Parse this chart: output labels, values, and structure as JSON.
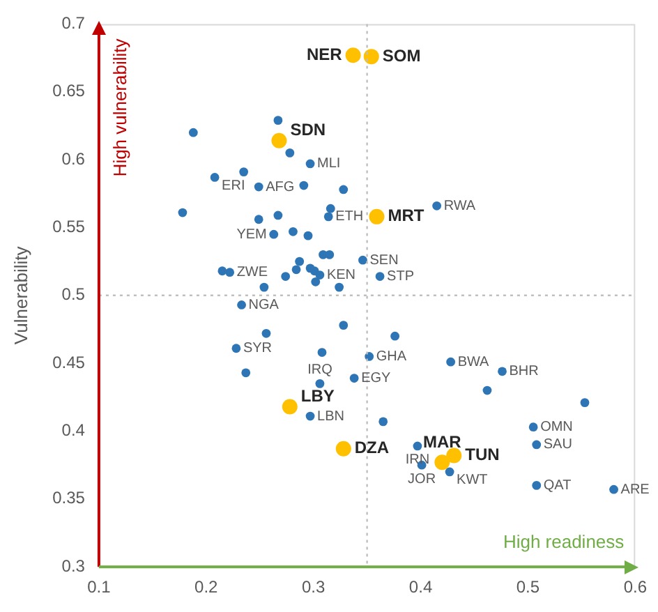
{
  "chart_data": {
    "type": "scatter",
    "ylabel": "Vulnerability",
    "xlim": [
      0.1,
      0.6
    ],
    "xticks": [
      0.1,
      0.2,
      0.3,
      0.4,
      0.5,
      0.6
    ],
    "ylim": [
      0.3,
      0.7
    ],
    "yticks": [
      0.3,
      0.35,
      0.4,
      0.45,
      0.5,
      0.55,
      0.6,
      0.65,
      0.7
    ],
    "grid": false,
    "legend": false,
    "marker": "circle",
    "ref_lines": [
      {
        "axis": "x",
        "value": 0.35,
        "color": "#bfbfbf",
        "line_style": "dotted"
      },
      {
        "axis": "y",
        "value": 0.5,
        "color": "#bfbfbf",
        "line_style": "dotted"
      }
    ],
    "series": [
      {
        "color": "#2e75b6",
        "x": [
          0.188,
          0.178,
          0.208,
          0.235,
          0.267,
          0.278,
          0.297,
          0.249,
          0.291,
          0.328,
          0.316,
          0.314,
          0.249,
          0.267,
          0.263,
          0.281,
          0.295,
          0.309,
          0.315,
          0.346,
          0.287,
          0.215,
          0.222,
          0.274,
          0.284,
          0.297,
          0.301,
          0.306,
          0.302,
          0.324,
          0.254,
          0.362,
          0.415,
          0.233,
          0.256,
          0.228,
          0.237,
          0.328,
          0.308,
          0.306,
          0.338,
          0.297,
          0.376,
          0.352,
          0.428,
          0.476,
          0.462,
          0.553,
          0.505,
          0.508,
          0.365,
          0.397,
          0.401,
          0.427,
          0.508,
          0.58
        ],
        "values": [
          0.62,
          0.561,
          0.587,
          0.591,
          0.629,
          0.605,
          0.597,
          0.58,
          0.581,
          0.578,
          0.564,
          0.558,
          0.556,
          0.559,
          0.545,
          0.547,
          0.544,
          0.53,
          0.53,
          0.526,
          0.525,
          0.518,
          0.517,
          0.514,
          0.519,
          0.52,
          0.518,
          0.515,
          0.51,
          0.506,
          0.506,
          0.514,
          0.566,
          0.493,
          0.472,
          0.461,
          0.443,
          0.478,
          0.458,
          0.435,
          0.439,
          0.411,
          0.47,
          0.455,
          0.451,
          0.444,
          0.43,
          0.421,
          0.403,
          0.39,
          0.407,
          0.389,
          0.375,
          0.37,
          0.36,
          0.357
        ]
      },
      {
        "color": "#ffc000",
        "x": [
          0.337,
          0.354,
          0.268,
          0.359,
          0.278,
          0.328,
          0.431,
          0.42
        ],
        "values": [
          0.677,
          0.676,
          0.614,
          0.558,
          0.418,
          0.387,
          0.382,
          0.377
        ]
      }
    ],
    "annotations": [
      "High vulnerability",
      "High readiness",
      {
        "text": "ERI",
        "x": 0.208,
        "y": 0.587
      },
      {
        "text": "AFG",
        "x": 0.249,
        "y": 0.58
      },
      {
        "text": "MLI",
        "x": 0.297,
        "y": 0.597
      },
      {
        "text": "ETH",
        "x": 0.314,
        "y": 0.558
      },
      {
        "text": "YEM",
        "x": 0.263,
        "y": 0.545
      },
      {
        "text": "ZWE",
        "x": 0.222,
        "y": 0.517
      },
      {
        "text": "KEN",
        "x": 0.306,
        "y": 0.515
      },
      {
        "text": "SEN",
        "x": 0.346,
        "y": 0.526
      },
      {
        "text": "STP",
        "x": 0.362,
        "y": 0.514
      },
      {
        "text": "RWA",
        "x": 0.415,
        "y": 0.566
      },
      {
        "text": "NGA",
        "x": 0.233,
        "y": 0.493
      },
      {
        "text": "SYR",
        "x": 0.228,
        "y": 0.461
      },
      {
        "text": "IRQ",
        "x": 0.306,
        "y": 0.435
      },
      {
        "text": "LBN",
        "x": 0.297,
        "y": 0.411
      },
      {
        "text": "GHA",
        "x": 0.352,
        "y": 0.455
      },
      {
        "text": "EGY",
        "x": 0.338,
        "y": 0.439
      },
      {
        "text": "BWA",
        "x": 0.428,
        "y": 0.451
      },
      {
        "text": "BHR",
        "x": 0.476,
        "y": 0.444
      },
      {
        "text": "OMN",
        "x": 0.505,
        "y": 0.403
      },
      {
        "text": "SAU",
        "x": 0.508,
        "y": 0.39
      },
      {
        "text": "IRN",
        "x": 0.397,
        "y": 0.389
      },
      {
        "text": "JOR",
        "x": 0.401,
        "y": 0.375
      },
      {
        "text": "KWT",
        "x": 0.427,
        "y": 0.37
      },
      {
        "text": "QAT",
        "x": 0.508,
        "y": 0.36
      },
      {
        "text": "ARE",
        "x": 0.58,
        "y": 0.357
      },
      {
        "text": "NER",
        "x": 0.337,
        "y": 0.677
      },
      {
        "text": "SOM",
        "x": 0.354,
        "y": 0.676
      },
      {
        "text": "SDN",
        "x": 0.268,
        "y": 0.614
      },
      {
        "text": "MRT",
        "x": 0.359,
        "y": 0.558
      },
      {
        "text": "LBY",
        "x": 0.278,
        "y": 0.418
      },
      {
        "text": "DZA",
        "x": 0.328,
        "y": 0.387
      },
      {
        "text": "TUN",
        "x": 0.431,
        "y": 0.382
      },
      {
        "text": "MAR",
        "x": 0.42,
        "y": 0.377
      }
    ]
  }
}
